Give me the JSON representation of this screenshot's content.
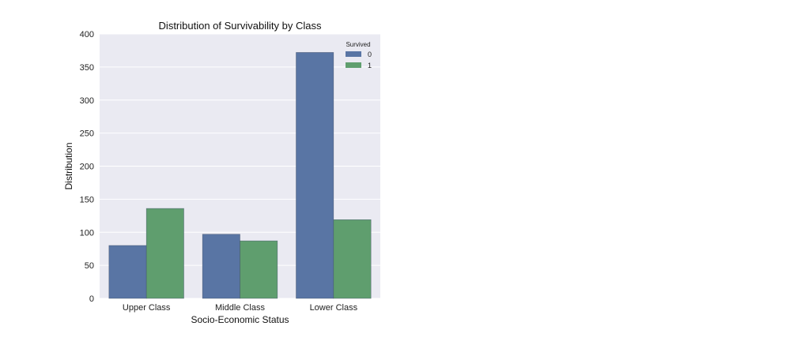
{
  "chart_data": {
    "type": "bar",
    "title": "Distribution of Survivability by Class",
    "xlabel": "Socio-Economic Status",
    "ylabel": "Distribution",
    "categories": [
      "Upper Class",
      "Middle Class",
      "Lower Class"
    ],
    "series": [
      {
        "name": "0",
        "color": "#5975a4",
        "values": [
          80,
          97,
          372
        ]
      },
      {
        "name": "1",
        "color": "#5f9e6e",
        "values": [
          136,
          87,
          119
        ]
      }
    ],
    "ylim": [
      0,
      400
    ],
    "yticks": [
      0,
      50,
      100,
      150,
      200,
      250,
      300,
      350,
      400
    ],
    "grid": true,
    "legend": {
      "title": "Survived",
      "placement": "top-right"
    },
    "plot_background": "#eaeaf2"
  }
}
